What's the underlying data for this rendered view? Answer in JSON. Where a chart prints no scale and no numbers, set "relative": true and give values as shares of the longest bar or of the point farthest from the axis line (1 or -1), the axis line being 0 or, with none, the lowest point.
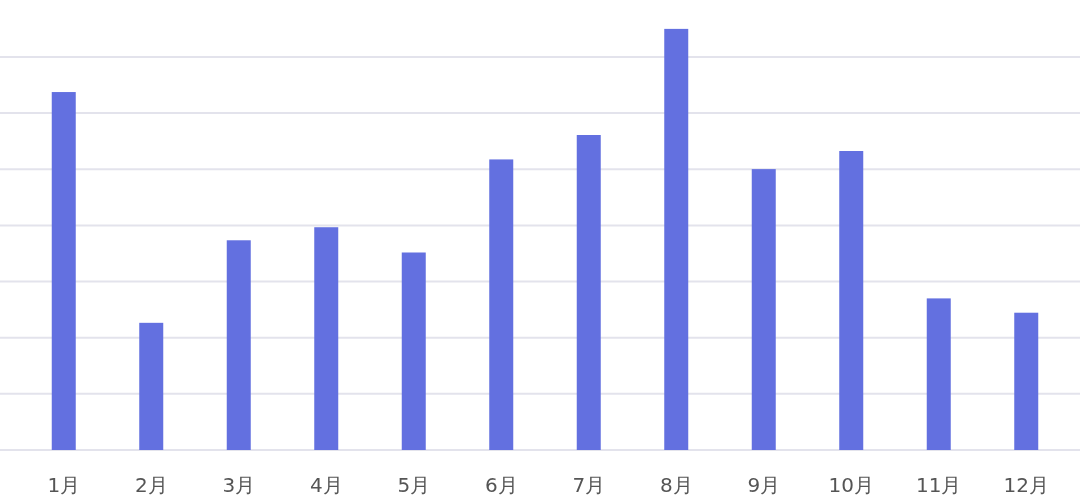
{
  "chart_data": {
    "type": "bar",
    "relative": true,
    "grid": "y",
    "color": "#6370e0",
    "categories": [
      "1月",
      "2月",
      "3月",
      "4月",
      "5月",
      "6月",
      "7月",
      "8月",
      "9月",
      "10月",
      "11月",
      "12月"
    ],
    "values": [
      0.85,
      0.302,
      0.498,
      0.529,
      0.469,
      0.69,
      0.748,
      1,
      0.667,
      0.71,
      0.36,
      0.326
    ]
  }
}
